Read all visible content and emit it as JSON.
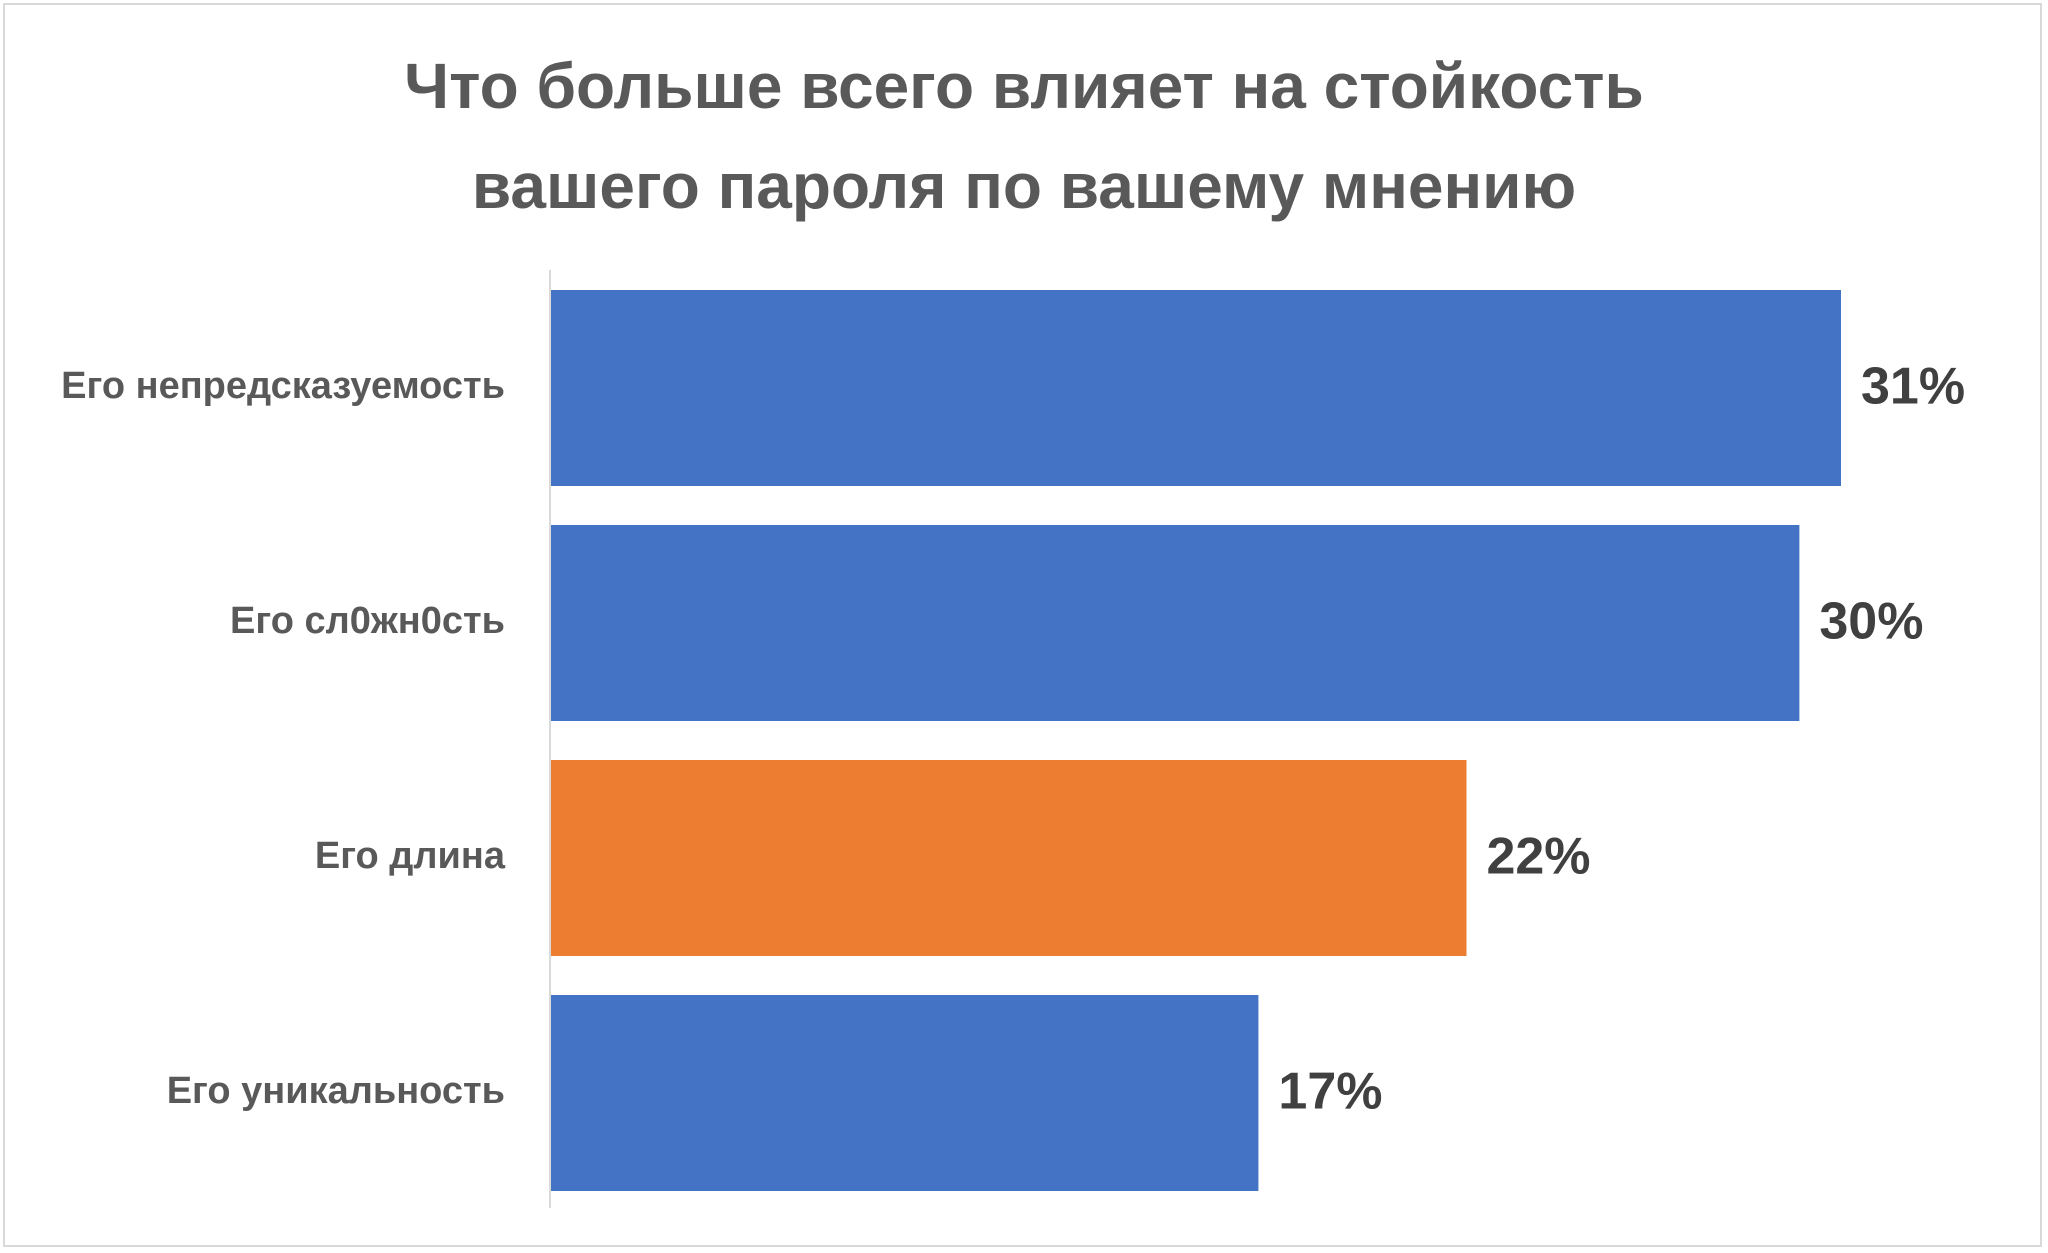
{
  "chart_data": {
    "type": "bar",
    "orientation": "horizontal",
    "title_lines": [
      "Что больше всего влияет на стойкость",
      "вашего пароля по вашему мнению"
    ],
    "categories": [
      "Его непредсказуемость",
      "Его сл0жн0сть",
      "Его длина",
      "Его уникальность"
    ],
    "values": [
      31,
      30,
      22,
      17
    ],
    "value_labels": [
      "31%",
      "30%",
      "22%",
      "17%"
    ],
    "colors": [
      "#4472c4",
      "#4472c4",
      "#ed7d31",
      "#4472c4"
    ],
    "unit": "%",
    "xlim": [
      0,
      31
    ],
    "grid": false,
    "legend": "none"
  }
}
